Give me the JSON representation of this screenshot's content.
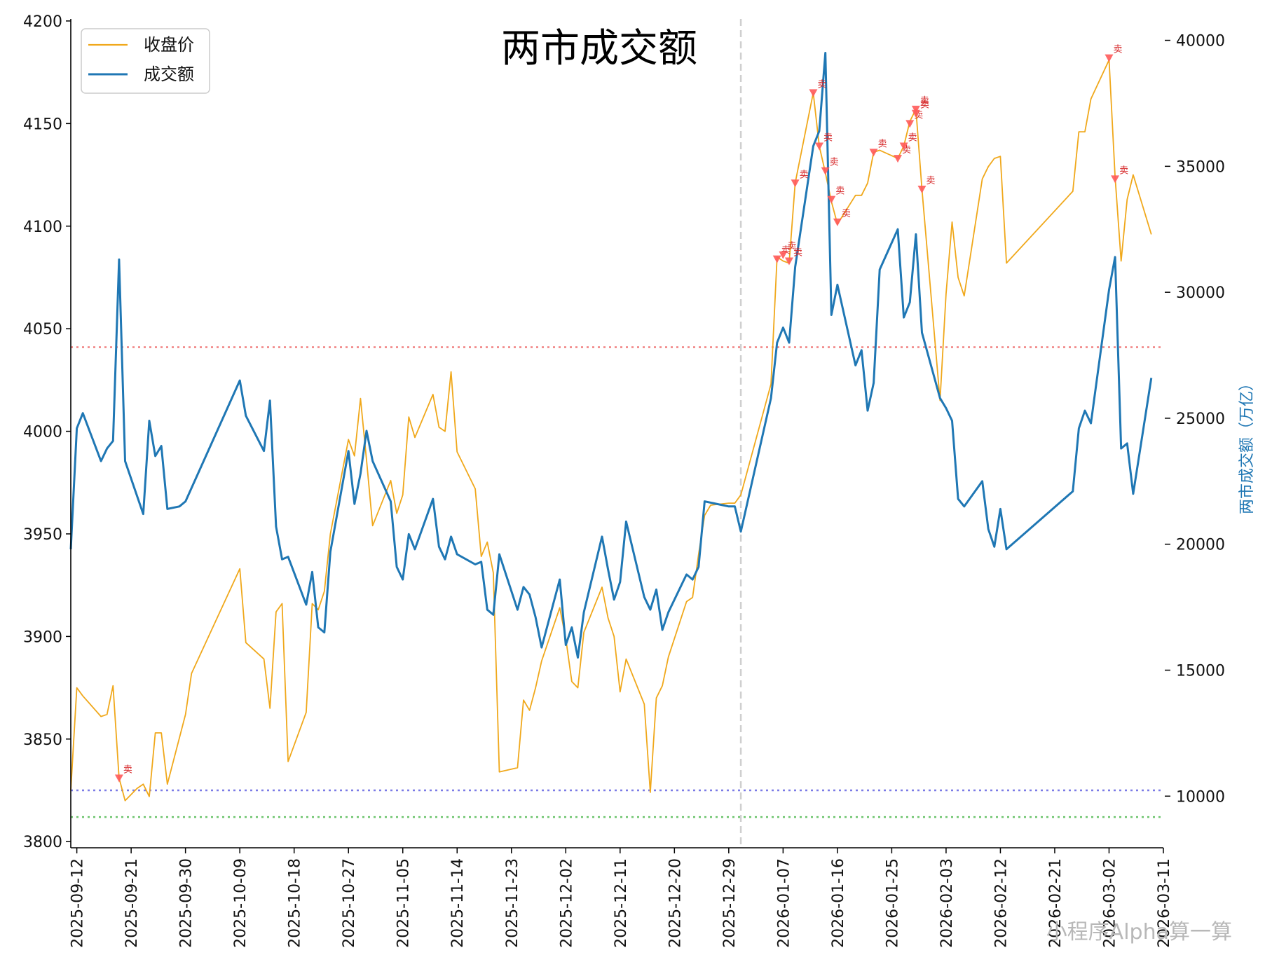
{
  "chart_data": {
    "type": "line",
    "title": "两市成交额",
    "xlabel": "",
    "ylabel_left": "",
    "ylabel_right": "两市成交额（万亿）",
    "watermark": "小程序Alpha算一算",
    "left_ylim": [
      3797,
      4201
    ],
    "right_ylim": [
      7950,
      40850
    ],
    "xlim": [
      "2025-09-11",
      "2026-03-11"
    ],
    "left_yticks": [
      3800,
      3850,
      3900,
      3950,
      4000,
      4050,
      4100,
      4150,
      4200
    ],
    "right_yticks": [
      10000,
      15000,
      20000,
      25000,
      30000,
      35000,
      40000
    ],
    "xticks": [
      "2025-09-12",
      "2025-09-21",
      "2025-09-30",
      "2025-10-09",
      "2025-10-18",
      "2025-10-27",
      "2025-11-05",
      "2025-11-14",
      "2025-11-23",
      "2025-12-02",
      "2025-12-11",
      "2025-12-20",
      "2025-12-29",
      "2026-01-07",
      "2026-01-16",
      "2026-01-25",
      "2026-02-03",
      "2026-02-12",
      "2026-02-21",
      "2026-03-02",
      "2026-03-11"
    ],
    "reference_lines": {
      "vertical_date": "2025-12-31",
      "hlines_left": [
        {
          "value": 4041,
          "color": "#f08080"
        },
        {
          "value": 3825,
          "color": "#7b7be6"
        },
        {
          "value": 3812,
          "color": "#6cc46c"
        }
      ]
    },
    "series": [
      {
        "name": "收盘价",
        "axis": "left",
        "color": "#f0a81b",
        "points": [
          [
            "2025-09-11",
            3825
          ],
          [
            "2025-09-12",
            3875
          ],
          [
            "2025-09-13",
            3871
          ],
          [
            "2025-09-16",
            3861
          ],
          [
            "2025-09-17",
            3862
          ],
          [
            "2025-09-18",
            3876
          ],
          [
            "2025-09-19",
            3831
          ],
          [
            "2025-09-20",
            3820
          ],
          [
            "2025-09-22",
            3826
          ],
          [
            "2025-09-23",
            3828
          ],
          [
            "2025-09-24",
            3822
          ],
          [
            "2025-09-25",
            3853
          ],
          [
            "2025-09-26",
            3853
          ],
          [
            "2025-09-27",
            3828
          ],
          [
            "2025-09-30",
            3862
          ],
          [
            "2025-10-01",
            3882
          ],
          [
            "2025-10-09",
            3933
          ],
          [
            "2025-10-10",
            3897
          ],
          [
            "2025-10-13",
            3889
          ],
          [
            "2025-10-14",
            3865
          ],
          [
            "2025-10-15",
            3912
          ],
          [
            "2025-10-16",
            3916
          ],
          [
            "2025-10-17",
            3839
          ],
          [
            "2025-10-20",
            3863
          ],
          [
            "2025-10-21",
            3916
          ],
          [
            "2025-10-22",
            3913
          ],
          [
            "2025-10-23",
            3922
          ],
          [
            "2025-10-24",
            3950
          ],
          [
            "2025-10-27",
            3996
          ],
          [
            "2025-10-28",
            3988
          ],
          [
            "2025-10-29",
            4016
          ],
          [
            "2025-10-30",
            3986
          ],
          [
            "2025-10-31",
            3954
          ],
          [
            "2025-11-03",
            3976
          ],
          [
            "2025-11-04",
            3960
          ],
          [
            "2025-11-05",
            3969
          ],
          [
            "2025-11-06",
            4007
          ],
          [
            "2025-11-07",
            3997
          ],
          [
            "2025-11-10",
            4018
          ],
          [
            "2025-11-11",
            4002
          ],
          [
            "2025-11-12",
            4000
          ],
          [
            "2025-11-13",
            4029
          ],
          [
            "2025-11-14",
            3990
          ],
          [
            "2025-11-17",
            3972
          ],
          [
            "2025-11-18",
            3939
          ],
          [
            "2025-11-19",
            3946
          ],
          [
            "2025-11-20",
            3931
          ],
          [
            "2025-11-21",
            3834
          ],
          [
            "2025-11-24",
            3836
          ],
          [
            "2025-11-25",
            3869
          ],
          [
            "2025-11-26",
            3864
          ],
          [
            "2025-11-27",
            3875
          ],
          [
            "2025-11-28",
            3888
          ],
          [
            "2025-12-01",
            3914
          ],
          [
            "2025-12-02",
            3899
          ],
          [
            "2025-12-03",
            3878
          ],
          [
            "2025-12-04",
            3875
          ],
          [
            "2025-12-05",
            3902
          ],
          [
            "2025-12-08",
            3924
          ],
          [
            "2025-12-09",
            3909
          ],
          [
            "2025-12-10",
            3900
          ],
          [
            "2025-12-11",
            3873
          ],
          [
            "2025-12-12",
            3889
          ],
          [
            "2025-12-15",
            3867
          ],
          [
            "2025-12-16",
            3824
          ],
          [
            "2025-12-17",
            3870
          ],
          [
            "2025-12-18",
            3876
          ],
          [
            "2025-12-19",
            3890
          ],
          [
            "2025-12-22",
            3917
          ],
          [
            "2025-12-23",
            3919
          ],
          [
            "2025-12-24",
            3940
          ],
          [
            "2025-12-25",
            3959
          ],
          [
            "2025-12-26",
            3964
          ],
          [
            "2025-12-29",
            3965
          ],
          [
            "2025-12-30",
            3965
          ],
          [
            "2025-12-31",
            3969
          ],
          [
            "2026-01-05",
            4023
          ],
          [
            "2026-01-06",
            4085
          ],
          [
            "2026-01-07",
            4083
          ],
          [
            "2026-01-08",
            4082
          ],
          [
            "2026-01-09",
            4121
          ],
          [
            "2026-01-12",
            4165
          ],
          [
            "2026-01-13",
            4139
          ],
          [
            "2026-01-14",
            4126
          ],
          [
            "2026-01-15",
            4112
          ],
          [
            "2026-01-16",
            4101
          ],
          [
            "2026-01-19",
            4115
          ],
          [
            "2026-01-20",
            4115
          ],
          [
            "2026-01-21",
            4121
          ],
          [
            "2026-01-22",
            4136
          ],
          [
            "2026-01-23",
            4137
          ],
          [
            "2026-01-26",
            4133
          ],
          [
            "2026-01-27",
            4139
          ],
          [
            "2026-01-28",
            4151
          ],
          [
            "2026-01-29",
            4157
          ],
          [
            "2026-01-30",
            4118
          ],
          [
            "2026-02-02",
            4015
          ],
          [
            "2026-02-03",
            4067
          ],
          [
            "2026-02-04",
            4102
          ],
          [
            "2026-02-05",
            4075
          ],
          [
            "2026-02-06",
            4066
          ],
          [
            "2026-02-09",
            4123
          ],
          [
            "2026-02-10",
            4129
          ],
          [
            "2026-02-11",
            4133
          ],
          [
            "2026-02-12",
            4134
          ],
          [
            "2026-02-13",
            4082
          ],
          [
            "2026-02-24",
            4117
          ],
          [
            "2026-02-25",
            4146
          ],
          [
            "2026-02-26",
            4146
          ],
          [
            "2026-02-27",
            4162
          ],
          [
            "2026-03-02",
            4181
          ],
          [
            "2026-03-03",
            4124
          ],
          [
            "2026-03-04",
            4083
          ],
          [
            "2026-03-05",
            4113
          ],
          [
            "2026-03-06",
            4125
          ],
          [
            "2026-03-09",
            4096
          ]
        ]
      },
      {
        "name": "成交额",
        "axis": "right",
        "color": "#1f77b4",
        "points": [
          [
            "2025-09-11",
            19800
          ],
          [
            "2025-09-12",
            24600
          ],
          [
            "2025-09-13",
            25200
          ],
          [
            "2025-09-16",
            23300
          ],
          [
            "2025-09-17",
            23800
          ],
          [
            "2025-09-18",
            24100
          ],
          [
            "2025-09-19",
            31300
          ],
          [
            "2025-09-20",
            23300
          ],
          [
            "2025-09-23",
            21200
          ],
          [
            "2025-09-24",
            24900
          ],
          [
            "2025-09-25",
            23500
          ],
          [
            "2025-09-26",
            23900
          ],
          [
            "2025-09-27",
            21400
          ],
          [
            "2025-09-29",
            21500
          ],
          [
            "2025-09-30",
            21700
          ],
          [
            "2025-10-09",
            26500
          ],
          [
            "2025-10-10",
            25100
          ],
          [
            "2025-10-13",
            23700
          ],
          [
            "2025-10-14",
            25700
          ],
          [
            "2025-10-15",
            20700
          ],
          [
            "2025-10-16",
            19400
          ],
          [
            "2025-10-17",
            19500
          ],
          [
            "2025-10-20",
            17600
          ],
          [
            "2025-10-21",
            18900
          ],
          [
            "2025-10-22",
            16700
          ],
          [
            "2025-10-23",
            16500
          ],
          [
            "2025-10-24",
            19700
          ],
          [
            "2025-10-27",
            23700
          ],
          [
            "2025-10-28",
            21600
          ],
          [
            "2025-10-29",
            22800
          ],
          [
            "2025-10-30",
            24500
          ],
          [
            "2025-10-31",
            23300
          ],
          [
            "2025-11-03",
            21700
          ],
          [
            "2025-11-04",
            19100
          ],
          [
            "2025-11-05",
            18600
          ],
          [
            "2025-11-06",
            20400
          ],
          [
            "2025-11-07",
            19800
          ],
          [
            "2025-11-10",
            21800
          ],
          [
            "2025-11-11",
            19900
          ],
          [
            "2025-11-12",
            19400
          ],
          [
            "2025-11-13",
            20300
          ],
          [
            "2025-11-14",
            19600
          ],
          [
            "2025-11-17",
            19200
          ],
          [
            "2025-11-18",
            19300
          ],
          [
            "2025-11-19",
            17400
          ],
          [
            "2025-11-20",
            17200
          ],
          [
            "2025-11-21",
            19600
          ],
          [
            "2025-11-24",
            17400
          ],
          [
            "2025-11-25",
            18300
          ],
          [
            "2025-11-26",
            18000
          ],
          [
            "2025-11-27",
            17100
          ],
          [
            "2025-11-28",
            15900
          ],
          [
            "2025-12-01",
            18600
          ],
          [
            "2025-12-02",
            16000
          ],
          [
            "2025-12-03",
            16700
          ],
          [
            "2025-12-04",
            15500
          ],
          [
            "2025-12-05",
            17300
          ],
          [
            "2025-12-08",
            20300
          ],
          [
            "2025-12-09",
            19000
          ],
          [
            "2025-12-10",
            17800
          ],
          [
            "2025-12-11",
            18500
          ],
          [
            "2025-12-12",
            20900
          ],
          [
            "2025-12-15",
            17900
          ],
          [
            "2025-12-16",
            17400
          ],
          [
            "2025-12-17",
            18200
          ],
          [
            "2025-12-18",
            16600
          ],
          [
            "2025-12-19",
            17300
          ],
          [
            "2025-12-22",
            18800
          ],
          [
            "2025-12-23",
            18600
          ],
          [
            "2025-12-24",
            19100
          ],
          [
            "2025-12-25",
            21700
          ],
          [
            "2025-12-29",
            21500
          ],
          [
            "2025-12-30",
            21500
          ],
          [
            "2025-12-31",
            20500
          ],
          [
            "2026-01-05",
            25800
          ],
          [
            "2026-01-06",
            28000
          ],
          [
            "2026-01-07",
            28600
          ],
          [
            "2026-01-08",
            28000
          ],
          [
            "2026-01-09",
            31000
          ],
          [
            "2026-01-12",
            35800
          ],
          [
            "2026-01-13",
            36400
          ],
          [
            "2026-01-14",
            39500
          ],
          [
            "2026-01-15",
            29100
          ],
          [
            "2026-01-16",
            30300
          ],
          [
            "2026-01-19",
            27100
          ],
          [
            "2026-01-20",
            27700
          ],
          [
            "2026-01-21",
            25300
          ],
          [
            "2026-01-22",
            26400
          ],
          [
            "2026-01-23",
            30900
          ],
          [
            "2026-01-26",
            32500
          ],
          [
            "2026-01-27",
            29000
          ],
          [
            "2026-01-28",
            29600
          ],
          [
            "2026-01-29",
            32300
          ],
          [
            "2026-01-30",
            28400
          ],
          [
            "2026-02-02",
            25800
          ],
          [
            "2026-02-03",
            25400
          ],
          [
            "2026-02-04",
            24900
          ],
          [
            "2026-02-05",
            21800
          ],
          [
            "2026-02-06",
            21500
          ],
          [
            "2026-02-09",
            22500
          ],
          [
            "2026-02-10",
            20600
          ],
          [
            "2026-02-11",
            19900
          ],
          [
            "2026-02-12",
            21400
          ],
          [
            "2026-02-13",
            19800
          ],
          [
            "2026-02-24",
            22100
          ],
          [
            "2026-02-25",
            24600
          ],
          [
            "2026-02-26",
            25300
          ],
          [
            "2026-02-27",
            24800
          ],
          [
            "2026-03-02",
            30100
          ],
          [
            "2026-03-03",
            31400
          ],
          [
            "2026-03-04",
            23800
          ],
          [
            "2026-03-05",
            24000
          ],
          [
            "2026-03-06",
            22000
          ],
          [
            "2026-03-09",
            26600
          ]
        ]
      }
    ],
    "sell_signals": {
      "label": "卖",
      "color": "#ff5a5a",
      "points": [
        [
          "2025-09-19",
          3831
        ],
        [
          "2026-01-06",
          4084
        ],
        [
          "2026-01-07",
          4086
        ],
        [
          "2026-01-08",
          4083
        ],
        [
          "2026-01-09",
          4121
        ],
        [
          "2026-01-12",
          4165
        ],
        [
          "2026-01-13",
          4139
        ],
        [
          "2026-01-14",
          4127
        ],
        [
          "2026-01-15",
          4113
        ],
        [
          "2026-01-16",
          4102
        ],
        [
          "2026-01-22",
          4136
        ],
        [
          "2026-01-26",
          4133
        ],
        [
          "2026-01-27",
          4139
        ],
        [
          "2026-01-28",
          4150
        ],
        [
          "2026-01-29",
          4155
        ],
        [
          "2026-01-29",
          4157
        ],
        [
          "2026-01-30",
          4118
        ],
        [
          "2026-03-02",
          4182
        ],
        [
          "2026-03-03",
          4123
        ]
      ]
    },
    "legend": {
      "position": "top-left",
      "entries": [
        "收盘价",
        "成交额"
      ]
    }
  }
}
